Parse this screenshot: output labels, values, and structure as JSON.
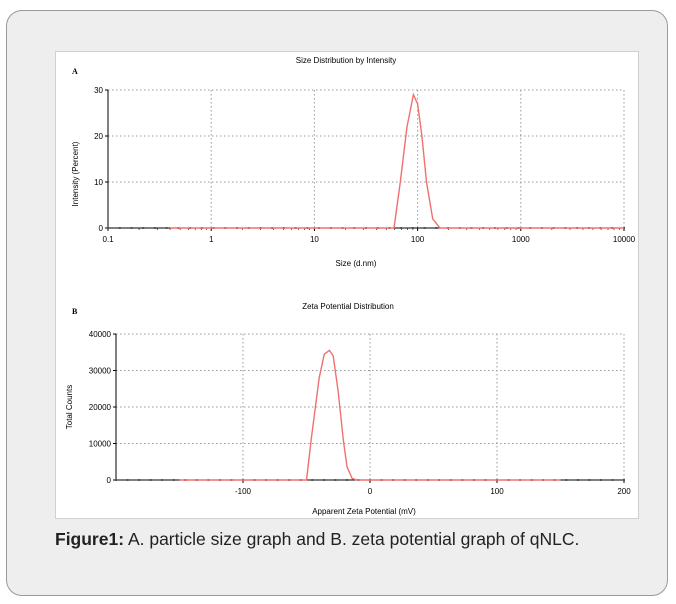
{
  "colors": {
    "series": "#f07070",
    "baseline_points": "#555555",
    "grid": "#9a9a9a",
    "card_background": "#eeeeee",
    "card_border": "#9a9a9a"
  },
  "caption": {
    "label": "Figure1:",
    "text": " A. particle size graph and B. zeta potential graph of qNLC."
  },
  "chart_data": [
    {
      "panel_label": "A",
      "type": "line",
      "title": "Size Distribution by Intensity",
      "xlabel": "Size (d.nm)",
      "ylabel": "Intensity (Percent)",
      "x_scale": "log",
      "xlim": [
        0.1,
        10000
      ],
      "ylim": [
        0,
        30
      ],
      "x_ticks": [
        0.1,
        1,
        10,
        100,
        1000,
        10000
      ],
      "x_tick_labels": [
        "0.1",
        "1",
        "10",
        "100",
        "1000",
        "10000"
      ],
      "y_ticks": [
        0,
        10,
        20,
        30
      ],
      "y_tick_labels": [
        "0",
        "10",
        "20",
        "30"
      ],
      "grid": true,
      "series": [
        {
          "x": [
            0.4,
            59,
            68,
            79,
            91,
            100,
            110,
            122,
            140,
            165,
            200,
            10000
          ],
          "y": [
            0,
            0,
            10,
            22,
            29,
            27,
            20,
            10,
            2,
            0,
            0,
            0
          ]
        }
      ]
    },
    {
      "panel_label": "B",
      "type": "line",
      "title": "Zeta Potential Distribution",
      "xlabel": "Apparent Zeta Potential (mV)",
      "ylabel": "Total Counts",
      "xlim": [
        -200,
        200
      ],
      "ylim": [
        0,
        40000
      ],
      "x_ticks": [
        -100,
        0,
        100,
        200
      ],
      "x_tick_labels": [
        "-100",
        "0",
        "100",
        "200"
      ],
      "y_ticks": [
        0,
        10000,
        20000,
        30000,
        40000
      ],
      "y_tick_labels": [
        "0",
        "10000",
        "20000",
        "30000",
        "40000"
      ],
      "grid": true,
      "series": [
        {
          "x": [
            -150,
            -50,
            -46,
            -40,
            -36,
            -32,
            -29,
            -25,
            -21,
            -18,
            -14,
            -10,
            150
          ],
          "y": [
            0,
            0,
            12000,
            28000,
            34500,
            35500,
            34000,
            24000,
            11000,
            3500,
            400,
            0,
            0
          ]
        }
      ]
    }
  ]
}
